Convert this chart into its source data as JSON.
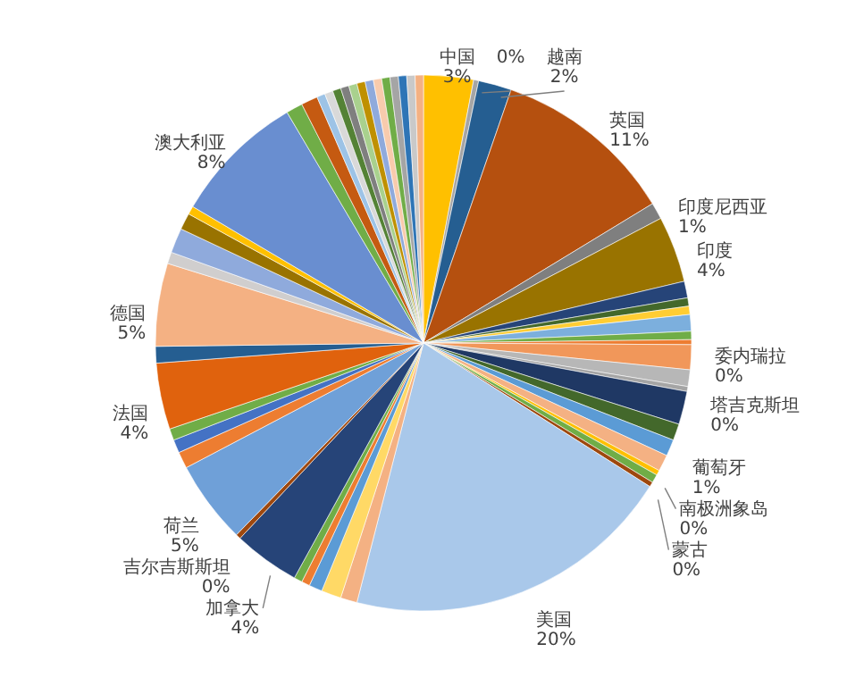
{
  "chart_data": {
    "type": "pie",
    "categories": [
      "中国",
      null,
      "越南",
      "英国",
      "印度尼西亚",
      "印度",
      null,
      null,
      null,
      null,
      null,
      "委内瑞拉",
      null,
      null,
      "塔吉克斯坦",
      null,
      null,
      "葡萄牙",
      null,
      "南极洲象岛",
      null,
      "蒙古",
      "美国",
      null,
      null,
      null,
      null,
      null,
      "加拿大",
      "吉尔吉斯斯坦",
      "荷兰",
      null,
      null,
      null,
      "法国",
      null,
      "德国",
      null,
      null,
      null,
      null,
      "澳大利亚",
      null,
      null,
      null,
      null,
      null,
      null,
      null,
      null,
      null,
      null,
      null,
      null,
      null,
      null,
      null
    ],
    "values": [
      3,
      0.3,
      2,
      11,
      1,
      4,
      1,
      0.5,
      0.5,
      1,
      0.5,
      0.3,
      1.5,
      1,
      0.3,
      2,
      1,
      1,
      1,
      0.3,
      0.5,
      0.3,
      20,
      1,
      1.2,
      0.8,
      0.5,
      0.5,
      4,
      0.3,
      5,
      1,
      0.8,
      0.7,
      4,
      1,
      5,
      0.7,
      1.5,
      1,
      0.5,
      8,
      1,
      1,
      0.5,
      0.5,
      0.5,
      0.5,
      0.5,
      0.5,
      0.5,
      0.5,
      0.5,
      0.5,
      0.5,
      0.5,
      0.5
    ],
    "value_labels": [
      "3%",
      "0%",
      "2%",
      "11%",
      "1%",
      "4%",
      null,
      null,
      null,
      null,
      null,
      "0%",
      null,
      null,
      "0%",
      null,
      null,
      "1%",
      null,
      "0%",
      null,
      "0%",
      "20%",
      null,
      null,
      null,
      null,
      null,
      "4%",
      "0%",
      "5%",
      null,
      null,
      null,
      "4%",
      null,
      "5%",
      null,
      null,
      null,
      null,
      "8%",
      null,
      null,
      null,
      null,
      null,
      null,
      null,
      null,
      null,
      null,
      null,
      null,
      null,
      null,
      null
    ],
    "colors": [
      "#ffc000",
      "#a5a5a5",
      "#255e91",
      "#b5500f",
      "#7f7f7f",
      "#997300",
      "#264478",
      "#43682b",
      "#ffcd33",
      "#7cafdd",
      "#70ad47",
      "#ed7d31",
      "#f1975a",
      "#b7b7b7",
      "#a5a5a5",
      "#1f3864",
      "#43682b",
      "#5b9bd5",
      "#f4b183",
      "#ffc000",
      "#70ad47",
      "#9e480e",
      "#a9c8ea",
      "#f4b183",
      "#ffd966",
      "#5b9bd5",
      "#ed7d31",
      "#70ad47",
      "#264478",
      "#9e480e",
      "#6fa0d8",
      "#ed7d31",
      "#4472c4",
      "#70ad47",
      "#e0620d",
      "#255e91",
      "#f4b183",
      "#d0cece",
      "#8faadc",
      "#997300",
      "#ffc000",
      "#698ed0",
      "#70ad47",
      "#c55a11",
      "#9dc3e6",
      "#d9d9d9",
      "#548235",
      "#7f7f7f",
      "#a9d18e",
      "#bf9000",
      "#8faadc",
      "#f8cbad",
      "#70ad47",
      "#a5a5a5",
      "#2e75b6",
      "#c9c9c9",
      "#f4b183"
    ]
  }
}
